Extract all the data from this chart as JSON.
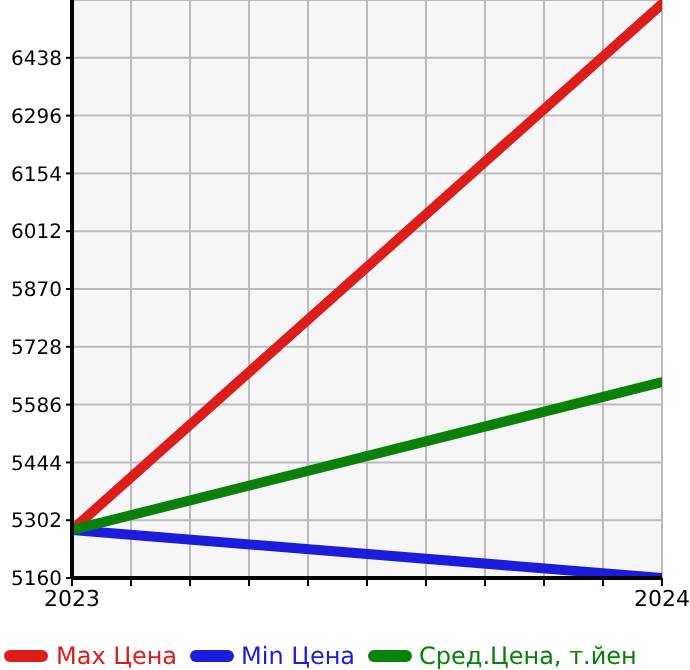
{
  "chart_data": {
    "type": "line",
    "x": [
      2023,
      2024
    ],
    "series": [
      {
        "name": "Max Цена",
        "color": "#dd1c1c",
        "values": [
          5278,
          6570
        ]
      },
      {
        "name": "Min Цена",
        "color": "#1c1cdd",
        "values": [
          5278,
          5160
        ]
      },
      {
        "name": "Сред.Цена, т.йен",
        "color": "#0a820a",
        "values": [
          5278,
          5641
        ]
      }
    ],
    "xlim": [
      2023,
      2024
    ],
    "xticks": [
      2023,
      {
        "value": 2023.1,
        "label": null
      },
      {
        "value": 2023.2,
        "label": null
      },
      {
        "value": 2023.3,
        "label": null
      },
      {
        "value": 2023.4,
        "label": null
      },
      {
        "value": 2023.5,
        "label": null
      },
      {
        "value": 2023.6,
        "label": null
      },
      {
        "value": 2023.7,
        "label": null
      },
      {
        "value": 2023.8,
        "label": null
      },
      {
        "value": 2023.9,
        "label": null
      },
      2024
    ],
    "ylim": [
      5160,
      6580
    ],
    "yticks": [
      5160,
      5302,
      5444,
      5586,
      5728,
      5870,
      6012,
      6154,
      6296,
      6438
    ],
    "grid": true,
    "legend": "bottom",
    "marker": "none",
    "line_style": "solid"
  }
}
